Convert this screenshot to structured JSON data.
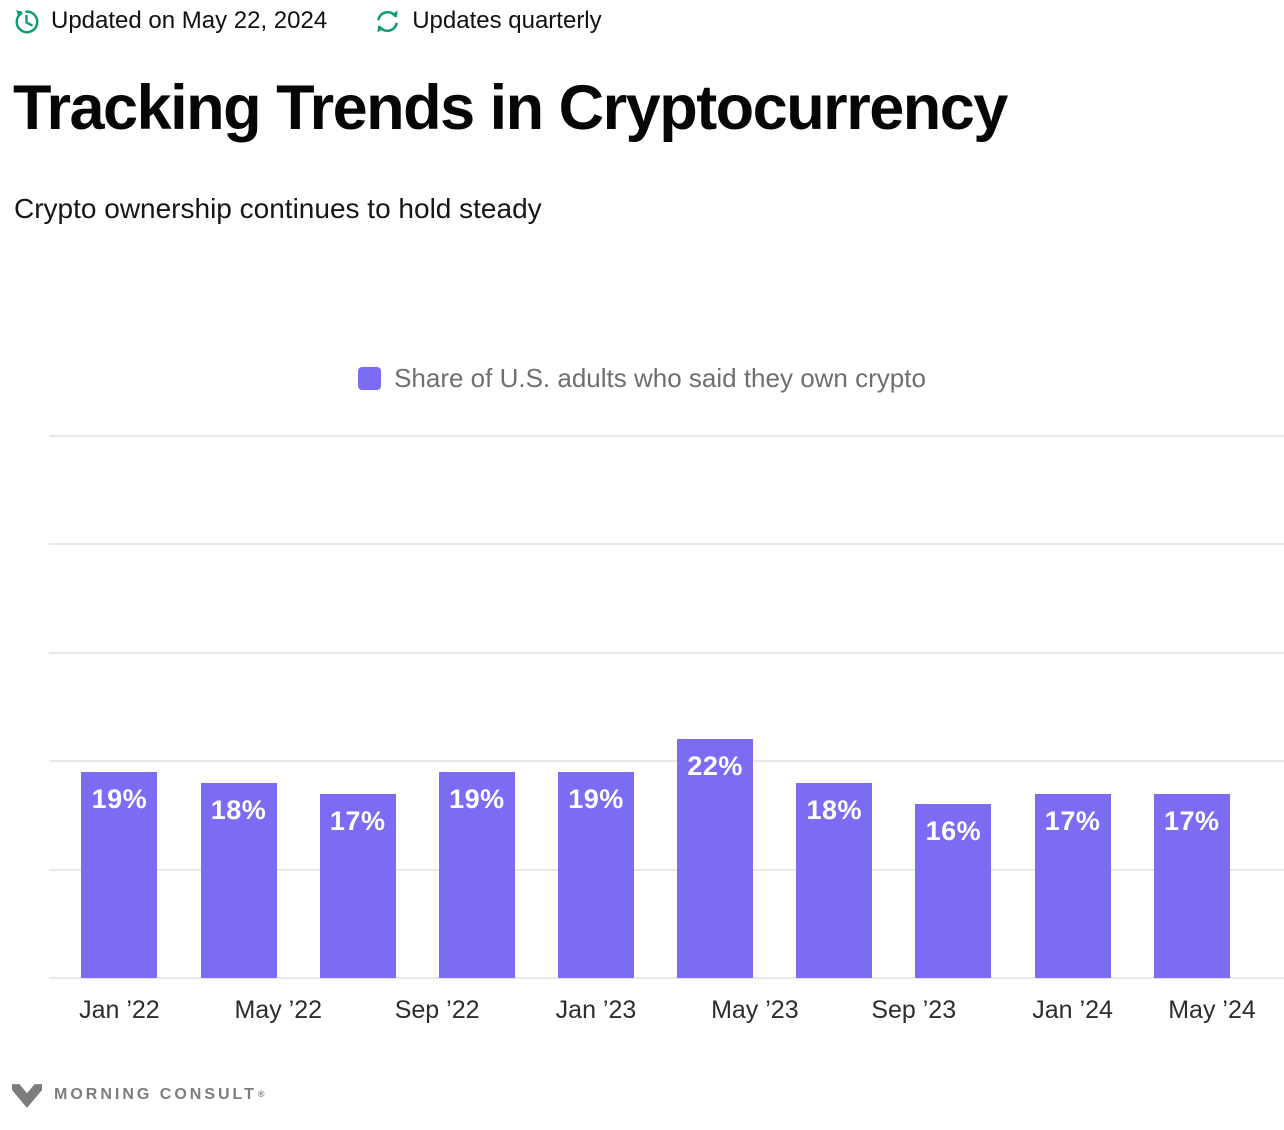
{
  "meta": {
    "updated": "Updated on May 22, 2024",
    "frequency": "Updates quarterly"
  },
  "header": {
    "title": "Tracking Trends in Cryptocurrency",
    "subtitle": "Crypto ownership continues to hold steady"
  },
  "chart_data": {
    "type": "bar",
    "legend_label": "Share of U.S. adults who said they own crypto",
    "values": [
      19,
      18,
      17,
      19,
      19,
      22,
      18,
      16,
      17,
      17
    ],
    "bar_labels": [
      "19%",
      "18%",
      "17%",
      "19%",
      "19%",
      "22%",
      "18%",
      "16%",
      "17%",
      "17%"
    ],
    "bar_months": [
      0,
      3,
      6,
      9,
      12,
      15,
      18,
      21,
      24,
      27
    ],
    "x_tick_labels": [
      "Jan ’22",
      "May ’22",
      "Sep ’22",
      "Jan ’23",
      "May ’23",
      "Sep ’23",
      "Jan ’24",
      "May ’24"
    ],
    "tick_months": [
      0,
      4,
      8,
      12,
      16,
      20,
      24,
      28
    ],
    "ylim": [
      0,
      50
    ],
    "grid_step": 10,
    "grid_on": true,
    "legend_position": "top-center",
    "xlabel": "",
    "ylabel": ""
  },
  "colors": {
    "bar": "#7b6cf3",
    "accent_teal": "#0f9b74",
    "gridline": "#e8e8e8"
  },
  "footer": {
    "brand": "MORNING CONSULT",
    "trademark": "®"
  }
}
